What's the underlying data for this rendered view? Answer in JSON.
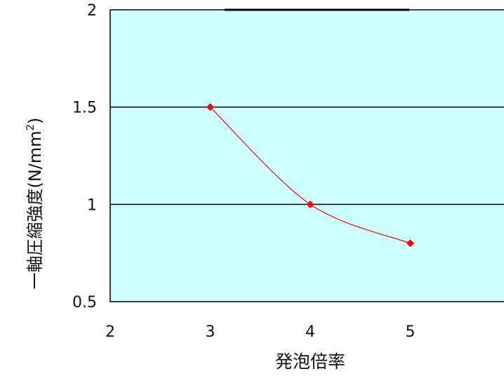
{
  "chart_data": {
    "type": "line",
    "title": "",
    "xlabel": "発泡倍率",
    "ylabel": "一軸圧縮強度(N/mm",
    "ylabel_superscript": "2",
    "ylabel_close": ")",
    "xlim": [
      2,
      6
    ],
    "ylim": [
      0.5,
      2
    ],
    "x_ticks": [
      2,
      3,
      4,
      5
    ],
    "x_tick_labels": [
      "2",
      "3",
      "4",
      "5"
    ],
    "y_ticks": [
      0.5,
      1,
      1.5,
      2
    ],
    "y_tick_labels": [
      "0.5",
      "1",
      "1.5",
      "2"
    ],
    "grid": "horizontal",
    "legend": "none",
    "series": [
      {
        "x": [
          3,
          4,
          5
        ],
        "y": [
          1.5,
          1.0,
          0.8
        ]
      }
    ],
    "colors": {
      "plot_background": "#ccffff",
      "gridline": "#000000",
      "series_line": "#ff0000",
      "marker": "#ff0000"
    }
  }
}
